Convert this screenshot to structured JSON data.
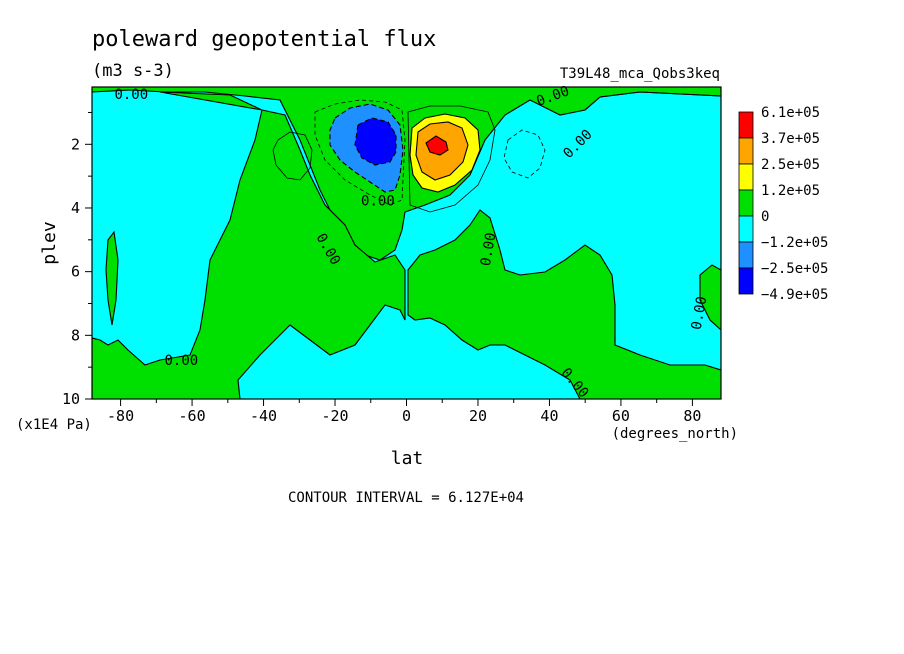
{
  "chart_data": {
    "type": "heatmap",
    "title": "poleward geopotential flux",
    "subtitle": "(m3 s-3)",
    "run_label": "T39L48_mca_Qobs3keq",
    "xlabel": "lat",
    "x_units": "(degrees_north)",
    "ylabel": "plev",
    "y_units": "(x1E4 Pa)",
    "xlim": [
      -88,
      88
    ],
    "ylim": [
      10,
      0.2
    ],
    "x_ticks": [
      -80,
      -60,
      -40,
      -20,
      0,
      20,
      40,
      60,
      80
    ],
    "x_tick_labels": [
      "-80",
      "-60",
      "-40",
      "-20",
      "0",
      "20",
      "40",
      "60",
      "80"
    ],
    "y_ticks": [
      2,
      4,
      6,
      8,
      10
    ],
    "y_tick_labels": [
      "2",
      "4",
      "6",
      "8",
      "10"
    ],
    "contour_interval_text": "CONTOUR INTERVAL = 6.127E+04",
    "contour_interval": 61270,
    "legend": {
      "placement": "right",
      "labels": [
        "6.1e+05",
        "3.7e+05",
        "2.5e+05",
        "1.2e+05",
        "0",
        "−1.2e+05",
        "−2.5e+05",
        "−4.9e+05"
      ],
      "colors": [
        "#ff0000",
        "#ffa500",
        "#ffff00",
        "#00e000",
        "#00ffff",
        "#1e90ff",
        "#0000ff"
      ]
    },
    "contour_labels": [
      {
        "text": "0.00",
        "lat": -77,
        "plev": 0.45,
        "angle": 0
      },
      {
        "text": "0.00",
        "lat": 41,
        "plev": 0.5,
        "angle": -20
      },
      {
        "text": "0.00",
        "lat": 48,
        "plev": 2.0,
        "angle": -45
      },
      {
        "text": "0.00",
        "lat": -8,
        "plev": 3.8,
        "angle": 0
      },
      {
        "text": "0.00",
        "lat": -22,
        "plev": 5.3,
        "angle": 60
      },
      {
        "text": "0.00",
        "lat": 23,
        "plev": 5.3,
        "angle": -80
      },
      {
        "text": "0.00",
        "lat": 82,
        "plev": 7.3,
        "angle": -80
      },
      {
        "text": "0.00",
        "lat": -63,
        "plev": 8.8,
        "angle": 0
      },
      {
        "text": "0.00",
        "lat": 47,
        "plev": 9.5,
        "angle": 50
      }
    ]
  }
}
